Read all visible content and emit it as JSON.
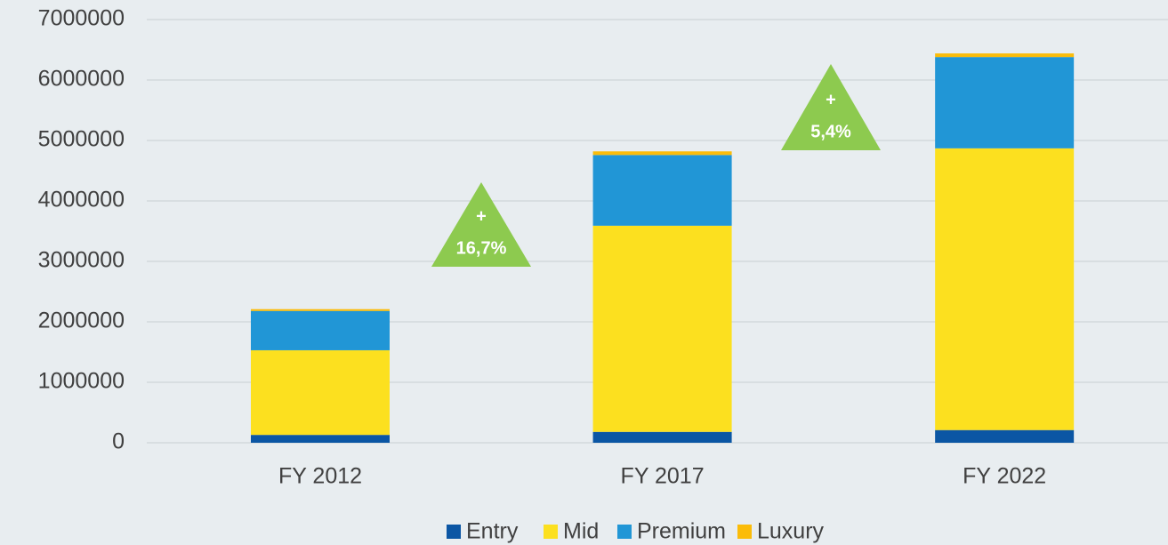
{
  "chart_data": {
    "type": "stacked_bar",
    "categories": [
      "FY 2012",
      "FY 2017",
      "FY 2022"
    ],
    "series": [
      {
        "name": "Entry",
        "color": "#0b56a4",
        "values": [
          130000,
          180000,
          210000
        ]
      },
      {
        "name": "Mid",
        "color": "#fce01f",
        "values": [
          1400000,
          3410000,
          4660000
        ]
      },
      {
        "name": "Premium",
        "color": "#2196d6",
        "values": [
          650000,
          1170000,
          1510000
        ]
      },
      {
        "name": "Luxury",
        "color": "#fbbc09",
        "values": [
          30000,
          60000,
          60000
        ]
      }
    ],
    "ylim": [
      0,
      7000000
    ],
    "yticks": [
      0,
      1000000,
      2000000,
      3000000,
      4000000,
      5000000,
      6000000,
      7000000
    ],
    "grid": true,
    "legend": "bottom",
    "annotations": [
      {
        "lines": [
          "+",
          "16,7%"
        ],
        "color": "#8dca4f"
      },
      {
        "lines": [
          "+",
          "5,4%"
        ],
        "color": "#8dca4f"
      }
    ]
  }
}
